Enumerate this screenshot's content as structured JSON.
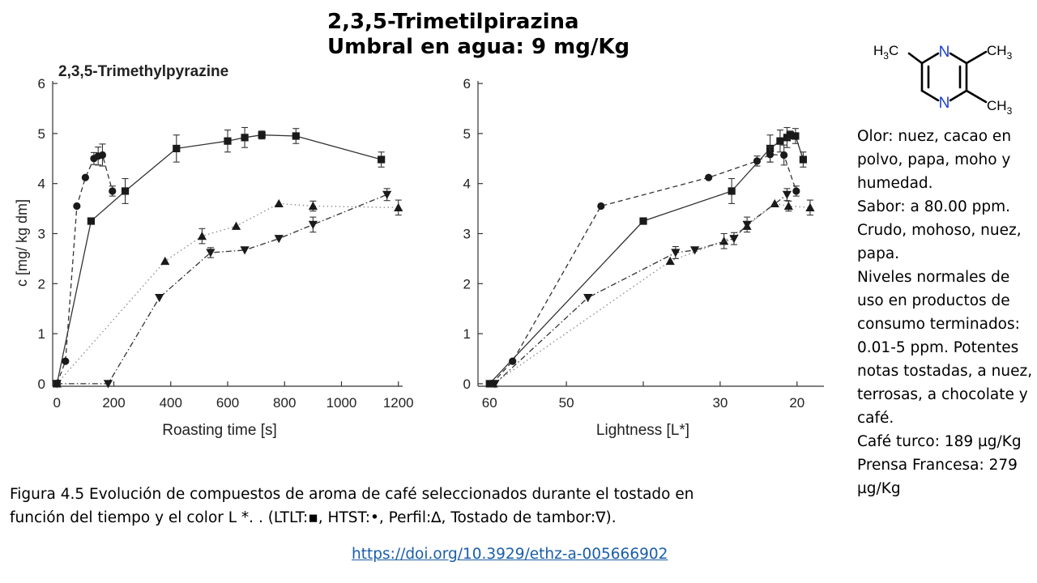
{
  "header": {
    "title_line1": "2,3,5-Trimetilpirazina",
    "title_line2": "Umbral en agua: 9 mg/Kg"
  },
  "molecule": {
    "atoms": {
      "n_top": "N",
      "n_bottom": "N",
      "ch3_left": "H3C",
      "ch3_right_top": "CH3",
      "ch3_right_bottom": "CH3"
    },
    "nitrogen_color": "#1a3fd1"
  },
  "info_lines": [
    "Olor: nuez, cacao en polvo, papa, moho y humedad.",
    "Sabor: a 80.00 ppm. Crudo, mohoso, nuez, papa.",
    "Niveles normales de uso en productos de consumo terminados: 0.01-5 ppm. Potentes notas tostadas, a nuez, terrosas, a chocolate y café.",
    "Café turco: 189 µg/Kg",
    "Prensa Francesa: 279 µg/Kg"
  ],
  "caption": {
    "line1": "Figura 4.5 Evolución de compuestos de aroma de café seleccionados durante el tostado en",
    "line2": "función del tiempo y el color L *. . (LTLT:▪, HTST:•, Perfil:∆, Tostado de tambor:∇)."
  },
  "link": {
    "text": "https://doi.org/10.3929/ethz-a-005666902"
  },
  "chart_data": [
    {
      "type": "line",
      "title": "2,3,5-Trimethylpyrazine",
      "xlabel": "Roasting time [s]",
      "ylabel": "c [mg/ kg dm]",
      "xlim": [
        -15,
        1215
      ],
      "ylim": [
        -0.05,
        6.05
      ],
      "xticks": [
        0,
        200,
        400,
        600,
        800,
        1000,
        1200
      ],
      "yticks": [
        0,
        1,
        2,
        3,
        4,
        5,
        6
      ],
      "xtick_labels": [
        "0",
        "200",
        "400",
        "600",
        "800",
        "1000",
        "1200"
      ],
      "ytick_labels": [
        "0",
        "1",
        "2",
        "3",
        "4",
        "5",
        "6"
      ],
      "series": [
        {
          "marker": "square",
          "line": "solid",
          "x": [
            0,
            120,
            240,
            420,
            600,
            660,
            720,
            840,
            1140
          ],
          "y": [
            0,
            3.25,
            3.85,
            4.7,
            4.85,
            4.92,
            4.97,
            4.95,
            4.48
          ],
          "err": [
            0,
            0,
            0.25,
            0.27,
            0.22,
            0.2,
            0.08,
            0.15,
            0.15
          ]
        },
        {
          "marker": "circle",
          "line": "dashed",
          "x": [
            0,
            30,
            70,
            100,
            130,
            145,
            160,
            195
          ],
          "y": [
            0,
            0.45,
            3.55,
            4.12,
            4.5,
            4.55,
            4.57,
            3.85
          ],
          "err": [
            0,
            0,
            0,
            0,
            0.12,
            0.18,
            0.22,
            0.1
          ]
        },
        {
          "marker": "triangle-up",
          "line": "dotted",
          "x": [
            0,
            380,
            510,
            630,
            780,
            900,
            1200
          ],
          "y": [
            0,
            2.45,
            2.95,
            3.15,
            3.6,
            3.55,
            3.52
          ],
          "err": [
            0,
            0,
            0.15,
            0,
            0,
            0.1,
            0.15
          ]
        },
        {
          "marker": "triangle-down",
          "line": "dashdot",
          "x": [
            0,
            180,
            360,
            540,
            660,
            780,
            900,
            1160
          ],
          "y": [
            0,
            0,
            1.72,
            2.62,
            2.67,
            2.9,
            3.18,
            3.78
          ],
          "err": [
            0,
            0,
            0,
            0.1,
            0,
            0,
            0.15,
            0.12
          ]
        }
      ]
    },
    {
      "type": "line",
      "xlabel": "Lightness [L*]",
      "xlim": [
        61.5,
        16.5
      ],
      "ylim": [
        -0.05,
        6.05
      ],
      "xticks": [
        60,
        50,
        30,
        20
      ],
      "xtick_labels": [
        "60",
        "50",
        "30",
        "20"
      ],
      "minor_xticks": [
        40
      ],
      "yticks": [
        0,
        1,
        2,
        3,
        4,
        5,
        6
      ],
      "ytick_labels": [
        "0",
        "1",
        "2",
        "3",
        "4",
        "5",
        "6"
      ],
      "series": [
        {
          "marker": "square",
          "line": "solid",
          "x": [
            60,
            40,
            28.5,
            23.5,
            22.2,
            21.3,
            20.9,
            20.2,
            19.2
          ],
          "y": [
            0,
            3.25,
            3.85,
            4.7,
            4.85,
            4.92,
            4.97,
            4.95,
            4.48
          ],
          "err": [
            0,
            0,
            0.25,
            0.27,
            0.22,
            0.2,
            0.08,
            0.15,
            0.15
          ]
        },
        {
          "marker": "circle",
          "line": "dashed",
          "x": [
            59.7,
            57,
            45.5,
            31.5,
            25.2,
            23.5,
            21.7,
            20.1
          ],
          "y": [
            0,
            0.45,
            3.55,
            4.12,
            4.45,
            4.58,
            4.57,
            3.85
          ],
          "err": [
            0,
            0,
            0,
            0,
            0.1,
            0.15,
            0.2,
            0.1
          ]
        },
        {
          "marker": "triangle-up",
          "line": "dotted",
          "x": [
            59.5,
            36.5,
            29.5,
            26.5,
            22.9,
            21.1,
            18.3
          ],
          "y": [
            0,
            2.45,
            2.85,
            3.15,
            3.6,
            3.55,
            3.52
          ],
          "err": [
            0,
            0,
            0.15,
            0,
            0,
            0.1,
            0.15
          ]
        },
        {
          "marker": "triangle-down",
          "line": "dashdot",
          "x": [
            59.3,
            47.2,
            35.8,
            33.3,
            28.2,
            26.5,
            21.3
          ],
          "y": [
            0,
            1.72,
            2.62,
            2.67,
            2.9,
            3.18,
            3.78
          ],
          "err": [
            0,
            0,
            0.12,
            0,
            0.12,
            0.15,
            0.12
          ]
        }
      ]
    }
  ]
}
